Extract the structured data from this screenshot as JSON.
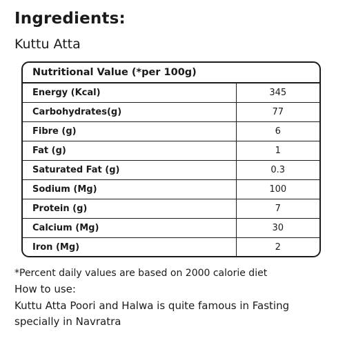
{
  "heading": "Ingredients:",
  "product_name": "Kuttu Atta",
  "nutrition": {
    "title": "Nutritional Value (*per 100g)",
    "rows": [
      {
        "name": "Energy (Kcal)",
        "value": "345"
      },
      {
        "name": "Carbohydrates(g)",
        "value": "77"
      },
      {
        "name": "Fibre (g)",
        "value": "6"
      },
      {
        "name": "Fat (g)",
        "value": "1"
      },
      {
        "name": "Saturated Fat (g)",
        "value": "0.3"
      },
      {
        "name": "Sodium (Mg)",
        "value": "100"
      },
      {
        "name": "Protein (g)",
        "value": "7"
      },
      {
        "name": "Calcium (Mg)",
        "value": "30"
      },
      {
        "name": "Iron (Mg)",
        "value": "2"
      }
    ]
  },
  "footnote": "*Percent daily values are based on 2000 calorie diet",
  "how_to_use": {
    "label": "How to use:",
    "text": "Kuttu Atta Poori and Halwa is quite famous in Fasting specially in Navratra"
  }
}
